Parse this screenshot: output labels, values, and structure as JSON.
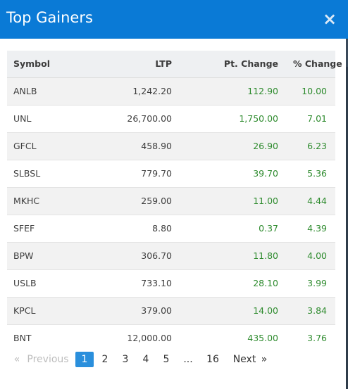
{
  "header": {
    "title": "Top Gainers",
    "close_glyph": "×"
  },
  "table": {
    "columns": [
      "Symbol",
      "LTP",
      "Pt. Change",
      "% Change"
    ],
    "rows": [
      {
        "symbol": "ANLB",
        "ltp": "1,242.20",
        "pt_change": "112.90",
        "pct_change": "10.00"
      },
      {
        "symbol": "UNL",
        "ltp": "26,700.00",
        "pt_change": "1,750.00",
        "pct_change": "7.01"
      },
      {
        "symbol": "GFCL",
        "ltp": "458.90",
        "pt_change": "26.90",
        "pct_change": "6.23"
      },
      {
        "symbol": "SLBSL",
        "ltp": "779.70",
        "pt_change": "39.70",
        "pct_change": "5.36"
      },
      {
        "symbol": "MKHC",
        "ltp": "259.00",
        "pt_change": "11.00",
        "pct_change": "4.44"
      },
      {
        "symbol": "SFEF",
        "ltp": "8.80",
        "pt_change": "0.37",
        "pct_change": "4.39"
      },
      {
        "symbol": "BPW",
        "ltp": "306.70",
        "pt_change": "11.80",
        "pct_change": "4.00"
      },
      {
        "symbol": "USLB",
        "ltp": "733.10",
        "pt_change": "28.10",
        "pct_change": "3.99"
      },
      {
        "symbol": "KPCL",
        "ltp": "379.00",
        "pt_change": "14.00",
        "pct_change": "3.84"
      },
      {
        "symbol": "BNT",
        "ltp": "12,000.00",
        "pt_change": "435.00",
        "pct_change": "3.76"
      }
    ]
  },
  "pagination": {
    "first_glyph": "«",
    "previous_label": "Previous",
    "pages": [
      "1",
      "2",
      "3",
      "4",
      "5"
    ],
    "ellipsis": "...",
    "last_page": "16",
    "next_label": "Next",
    "last_glyph": "»",
    "current_page": "1"
  },
  "colors": {
    "header_bg": "#0a7ad6",
    "positive_green": "#2e8b2e",
    "active_page": "#2a8fdc"
  },
  "icons": {
    "close": "close-icon"
  }
}
